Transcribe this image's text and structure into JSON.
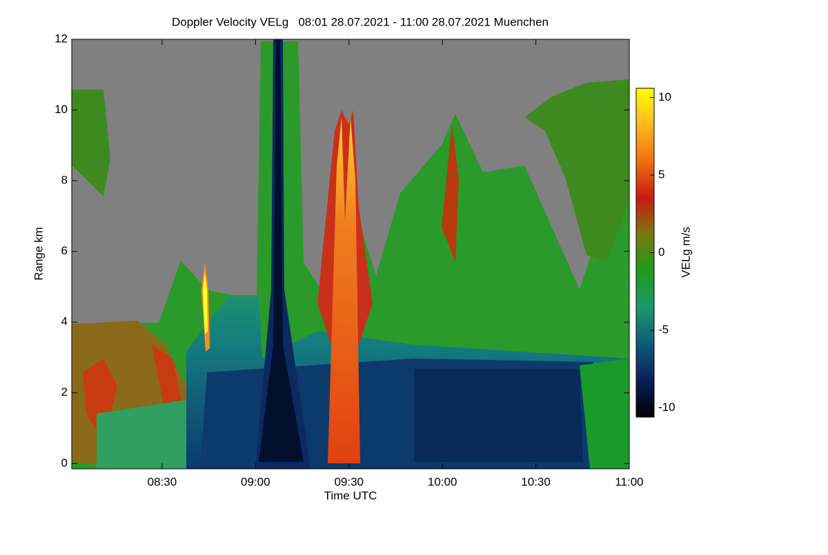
{
  "chart_data": {
    "type": "heatmap",
    "title": "Doppler Velocity VELg   08:01 28.07.2021 - 11:00 28.07.2021 Muenchen",
    "x_label": "Time UTC",
    "y_label": "Range km",
    "colorbar_label": "VELg m/s",
    "xlim": [
      481,
      660
    ],
    "xticks": [
      {
        "value": 510,
        "label": "08:30"
      },
      {
        "value": 540,
        "label": "09:00"
      },
      {
        "value": 570,
        "label": "09:30"
      },
      {
        "value": 600,
        "label": "10:00"
      },
      {
        "value": 630,
        "label": "10:30"
      },
      {
        "value": 660,
        "label": "11:00"
      }
    ],
    "ylim": [
      -0.15,
      12
    ],
    "yticks": [
      0,
      2,
      4,
      6,
      8,
      10,
      12
    ],
    "clim": [
      -10.6,
      10.6
    ],
    "cticks": [
      -10,
      -5,
      0,
      5,
      10
    ],
    "colormap": [
      "#000000",
      "#0a1f5c",
      "#0f5a7a",
      "#1a9a6a",
      "#1c9a1c",
      "#7a7a10",
      "#c81a10",
      "#f07010",
      "#ffb820",
      "#ffff00"
    ]
  }
}
